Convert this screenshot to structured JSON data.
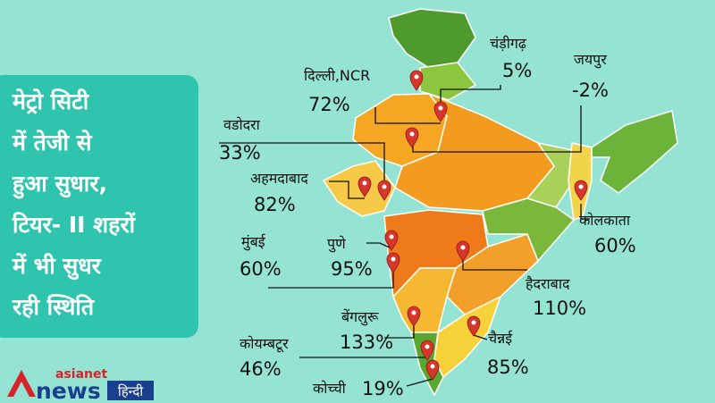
{
  "headline": [
    "मेट्रो सिटी",
    "में तेजी से",
    "हुआ सुधार,",
    "टियर- II शहरों",
    "में भी सुधर",
    "रही स्थिति"
  ],
  "cities": [
    {
      "name": "चंड़ीगढ़",
      "change": "5%"
    },
    {
      "name": "दिल्ली,NCR",
      "change": "72%"
    },
    {
      "name": "जयपुर",
      "change": "-2%"
    },
    {
      "name": "वडोदरा",
      "change": "33%"
    },
    {
      "name": "अहमदाबाद",
      "change": "82%"
    },
    {
      "name": "कोलकाता",
      "change": "60%"
    },
    {
      "name": "मुंबई",
      "change": "60%"
    },
    {
      "name": "पुणे",
      "change": "95%"
    },
    {
      "name": "हैदराबाद",
      "change": "110%"
    },
    {
      "name": "बेंगलुरू",
      "change": "133%"
    },
    {
      "name": "चैन्नई",
      "change": "85%"
    },
    {
      "name": "कोयम्बटूर",
      "change": "46%"
    },
    {
      "name": "कोच्ची",
      "change": "19%"
    }
  ],
  "logo": {
    "brand": "asianet",
    "product": "news",
    "language": "हिन्दी"
  }
}
